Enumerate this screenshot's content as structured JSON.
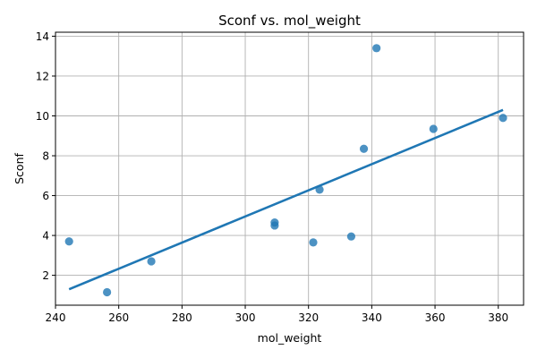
{
  "chart_data": {
    "type": "scatter",
    "title": "Sconf vs. mol_weight",
    "xlabel": "mol_weight",
    "ylabel": "Sconf",
    "xlim": [
      240,
      388
    ],
    "ylim": [
      0.5,
      14.2
    ],
    "xticks": [
      240,
      260,
      280,
      300,
      320,
      340,
      360,
      380
    ],
    "yticks": [
      2,
      4,
      6,
      8,
      10,
      12,
      14
    ],
    "grid": true,
    "color": "#1f77b4",
    "points": [
      {
        "x": 244.3,
        "y": 3.7
      },
      {
        "x": 256.3,
        "y": 1.15
      },
      {
        "x": 270.3,
        "y": 2.7
      },
      {
        "x": 309.3,
        "y": 4.65
      },
      {
        "x": 309.3,
        "y": 4.5
      },
      {
        "x": 321.5,
        "y": 3.65
      },
      {
        "x": 323.5,
        "y": 6.3
      },
      {
        "x": 333.5,
        "y": 3.95
      },
      {
        "x": 337.5,
        "y": 8.35
      },
      {
        "x": 341.5,
        "y": 13.4
      },
      {
        "x": 359.5,
        "y": 9.35
      },
      {
        "x": 381.5,
        "y": 9.9
      }
    ],
    "trendline": {
      "x": [
        244.3,
        381.5
      ],
      "y": [
        1.3,
        10.3
      ]
    }
  }
}
